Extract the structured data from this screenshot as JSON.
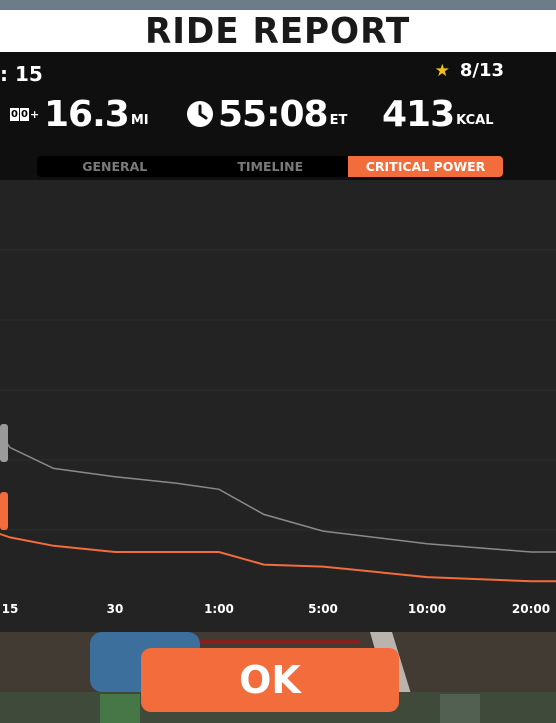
{
  "header": {
    "title": "RIDE REPORT"
  },
  "summary": {
    "level_text": ": 15",
    "rating_value": "8/13",
    "distance": {
      "value": "16.3",
      "unit": "MI"
    },
    "time": {
      "value": "55:08",
      "unit": "ET"
    },
    "calories": {
      "value": "413",
      "unit": "KCAL"
    }
  },
  "tabs": [
    {
      "label": "GENERAL",
      "active": false
    },
    {
      "label": "TIMELINE",
      "active": false
    },
    {
      "label": "CRITICAL POWER",
      "active": true
    }
  ],
  "chart_data": {
    "type": "line",
    "x_ticks": [
      "15",
      "30",
      "1:00",
      "5:00",
      "10:00",
      "20:00"
    ],
    "xlabel": "",
    "ylabel": "",
    "grid": true,
    "series": [
      {
        "color": "#8a8a8a",
        "x_seconds": [
          5,
          10,
          15,
          20,
          30,
          45,
          60,
          120,
          300,
          600,
          1200
        ],
        "relative_power": [
          0.5,
          0.42,
          0.36,
          0.31,
          0.29,
          0.275,
          0.26,
          0.2,
          0.16,
          0.13,
          0.11
        ]
      },
      {
        "color": "#f26c3c",
        "x_seconds": [
          5,
          10,
          15,
          20,
          30,
          45,
          60,
          120,
          300,
          600,
          1200
        ],
        "relative_power": [
          0.18,
          0.16,
          0.145,
          0.125,
          0.11,
          0.11,
          0.11,
          0.08,
          0.075,
          0.05,
          0.04
        ]
      }
    ]
  },
  "actions": {
    "ok_label": "OK"
  },
  "colors": {
    "accent": "#f26c3c",
    "star": "#f2c21a",
    "panel": "#232323"
  }
}
